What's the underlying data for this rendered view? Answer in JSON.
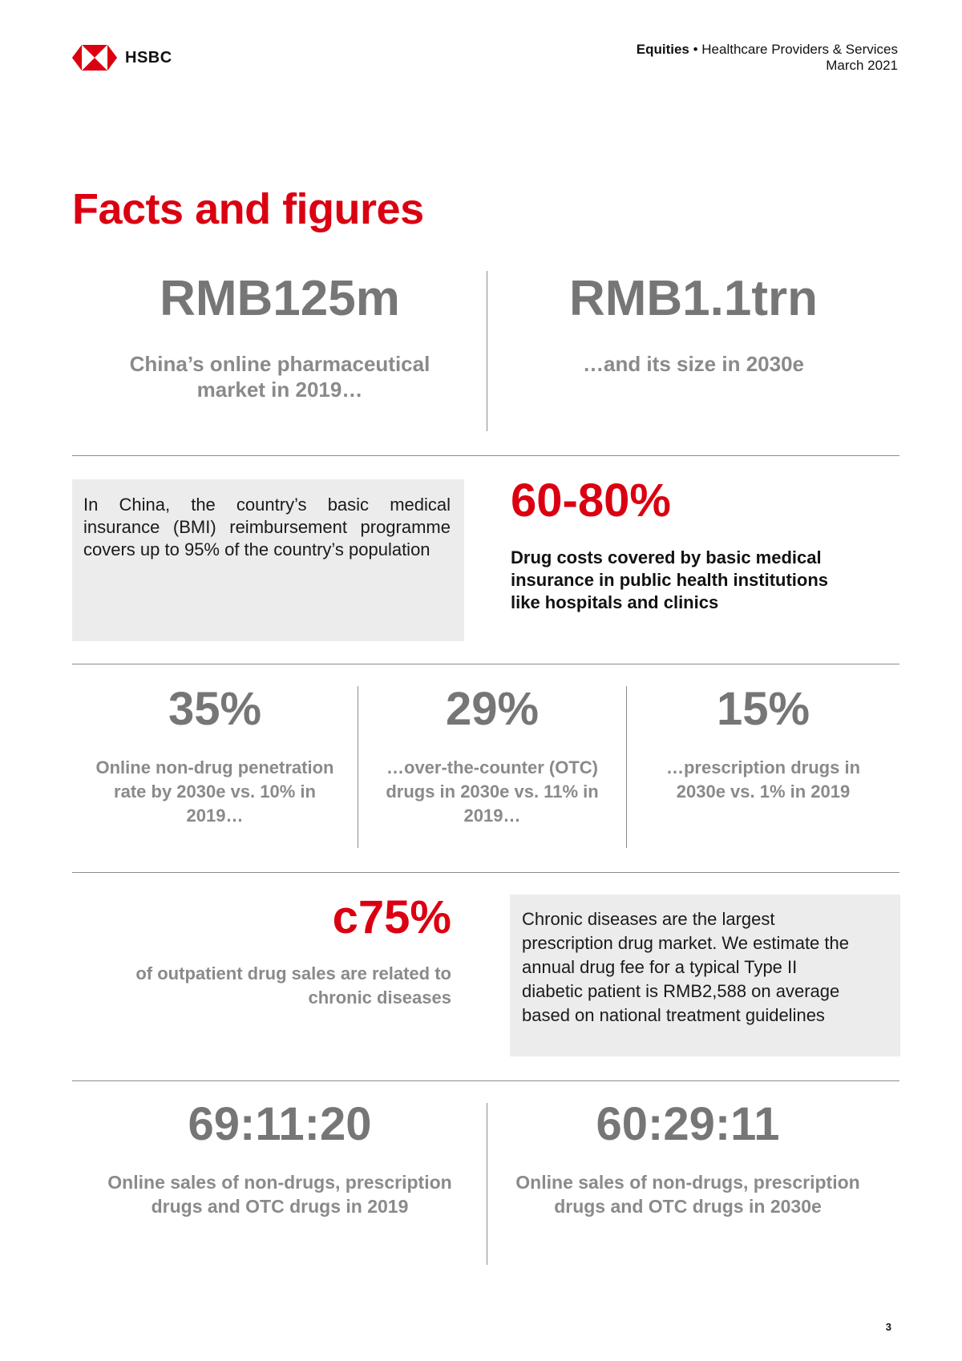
{
  "header": {
    "logo_text": "HSBC",
    "section_strong": "Equities",
    "bullet": "•",
    "section_rest": "Healthcare Providers & Services",
    "date": "March 2021"
  },
  "title": "Facts and figures",
  "row1": {
    "left": {
      "value": "RMB125m",
      "caption_line1": "China’s online pharmaceutical",
      "caption_line2": "market in 2019…"
    },
    "right": {
      "value": "RMB1.1trn",
      "caption": "…and its size in 2030e"
    }
  },
  "row2": {
    "box_text": "In China, the country’s basic medical insurance (BMI) reimbursement programme covers up to 95% of the country’s population",
    "value": "60-80%",
    "caption_line1": "Drug costs covered by basic medical",
    "caption_line2": "insurance in public health institutions",
    "caption_line3": "like hospitals and clinics"
  },
  "row3": [
    {
      "value": "35%",
      "l1": "Online non-drug penetration",
      "l2": "rate by 2030e vs. 10% in",
      "l3": "2019…"
    },
    {
      "value": "29%",
      "l1": "…over-the-counter (OTC)",
      "l2": "drugs in 2030e vs. 11% in",
      "l3": "2019…"
    },
    {
      "value": "15%",
      "l1": "…prescription drugs in",
      "l2": "2030e vs. 1% in 2019",
      "l3": ""
    }
  ],
  "row4": {
    "value": "c75%",
    "caption_line1": "of outpatient drug sales are related to",
    "caption_line2": "chronic diseases",
    "box_line1": "Chronic diseases are the largest",
    "box_line2": "prescription drug market. We estimate the",
    "box_line3": "annual drug fee for a typical Type II",
    "box_line4": "diabetic patient is RMB2,588 on average",
    "box_line5": "based on national treatment guidelines"
  },
  "row5": {
    "left": {
      "value": "69:11:20",
      "l1": "Online sales of non-drugs, prescription",
      "l2": "drugs and OTC drugs in 2019"
    },
    "right": {
      "value": "60:29:11",
      "l1": "Online sales of non-drugs, prescription",
      "l2": "drugs and OTC drugs in 2030e"
    }
  },
  "page_number": "3",
  "colors": {
    "brand_red": "#db0011",
    "grey_text": "#767676",
    "box_bg": "#ececec"
  }
}
